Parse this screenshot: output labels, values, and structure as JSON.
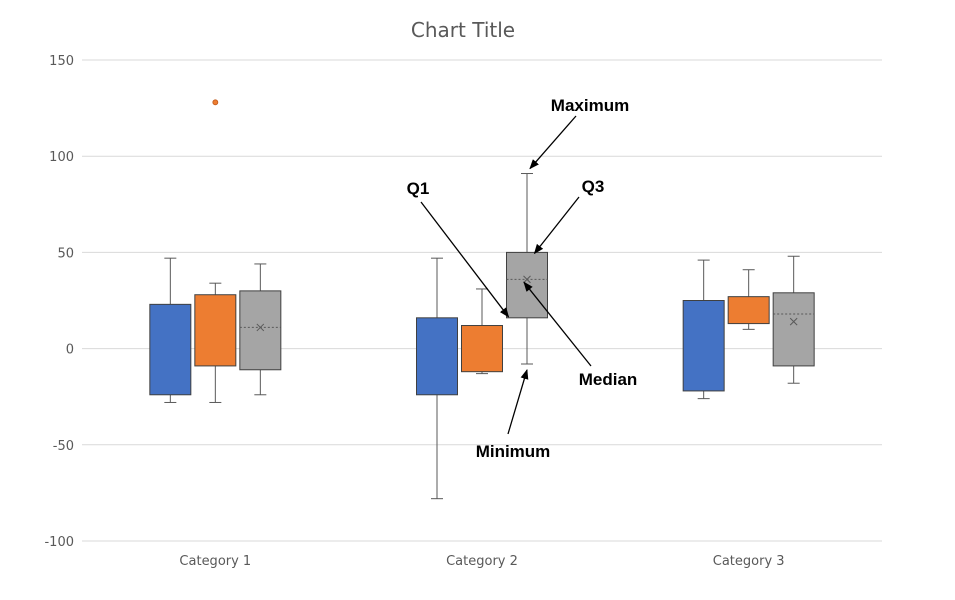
{
  "chart_data": {
    "type": "boxplot",
    "title": "Chart Title",
    "xlabel": "",
    "ylabel": "",
    "ylim": [
      -100,
      150
    ],
    "yticks": [
      -100,
      -50,
      0,
      50,
      100,
      150
    ],
    "grid": true,
    "legend": "none",
    "categories": [
      "Category 1",
      "Category 2",
      "Category 3"
    ],
    "series": [
      {
        "color": "#4472C4",
        "boxes": [
          {
            "min": -28,
            "q1": -24,
            "median": null,
            "q3": 23,
            "max": 47,
            "mean": null,
            "outliers": []
          },
          {
            "min": -78,
            "q1": -24,
            "median": null,
            "q3": 16,
            "max": 47,
            "mean": null,
            "outliers": []
          },
          {
            "min": -26,
            "q1": -22,
            "median": null,
            "q3": 25,
            "max": 46,
            "mean": null,
            "outliers": []
          }
        ]
      },
      {
        "color": "#ED7D31",
        "boxes": [
          {
            "min": -28,
            "q1": -9,
            "median": null,
            "q3": 28,
            "max": 34,
            "mean": null,
            "outliers": [
              128
            ]
          },
          {
            "min": -13,
            "q1": -12,
            "median": null,
            "q3": 12,
            "max": 31,
            "mean": null,
            "outliers": []
          },
          {
            "min": 10,
            "q1": 13,
            "median": null,
            "q3": 27,
            "max": 41,
            "mean": null,
            "outliers": []
          }
        ]
      },
      {
        "color": "#A5A5A5",
        "boxes": [
          {
            "min": -24,
            "q1": -11,
            "median": 11,
            "q3": 30,
            "max": 44,
            "mean": 11,
            "outliers": []
          },
          {
            "min": -8,
            "q1": 16,
            "median": 36,
            "q3": 50,
            "max": 91,
            "mean": 36,
            "outliers": []
          },
          {
            "min": -18,
            "q1": -9,
            "median": 18,
            "q3": 29,
            "max": 48,
            "mean": 14,
            "outliers": []
          }
        ]
      }
    ],
    "annotations": [
      {
        "label": "Maximum",
        "category": 1,
        "series": 2,
        "points_to": "max"
      },
      {
        "label": "Q3",
        "category": 1,
        "series": 2,
        "points_to": "q3"
      },
      {
        "label": "Q1",
        "category": 1,
        "series": 2,
        "points_to": "q1"
      },
      {
        "label": "Median",
        "category": 1,
        "series": 2,
        "points_to": "median"
      },
      {
        "label": "Minimum",
        "category": 1,
        "series": 2,
        "points_to": "min"
      }
    ]
  }
}
